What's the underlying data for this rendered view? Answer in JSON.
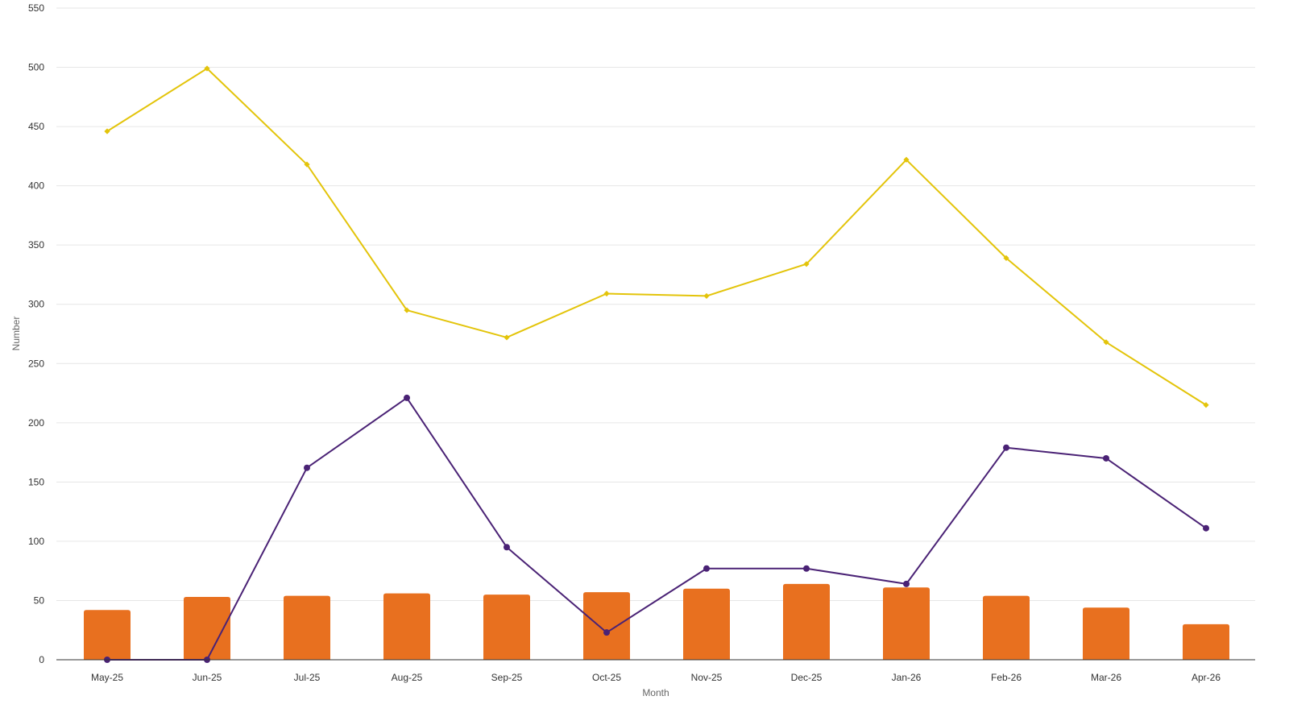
{
  "chart_data": {
    "type": "bar",
    "title": "",
    "xlabel": "Month",
    "ylabel": "Number",
    "ylim": [
      0,
      550
    ],
    "yticks": [
      0,
      50,
      100,
      150,
      200,
      250,
      300,
      350,
      400,
      450,
      500,
      550
    ],
    "grid": true,
    "legend": "none",
    "categories": [
      "May-25",
      "Jun-25",
      "Jul-25",
      "Aug-25",
      "Sep-25",
      "Oct-25",
      "Nov-25",
      "Dec-25",
      "Jan-26",
      "Feb-26",
      "Mar-26",
      "Apr-26"
    ],
    "series": [
      {
        "type": "bar",
        "color": "#e8701f",
        "values": [
          42,
          53,
          54,
          56,
          55,
          57,
          60,
          64,
          61,
          54,
          44,
          30
        ]
      },
      {
        "type": "line",
        "marker": "diamond",
        "color": "#e3c40a",
        "values": [
          446,
          499,
          418,
          295,
          272,
          309,
          307,
          334,
          422,
          339,
          268,
          215
        ]
      },
      {
        "type": "line",
        "marker": "circle",
        "color": "#4a2275",
        "values": [
          0,
          0,
          162,
          221,
          95,
          23,
          77,
          77,
          64,
          179,
          170,
          111
        ]
      }
    ]
  }
}
